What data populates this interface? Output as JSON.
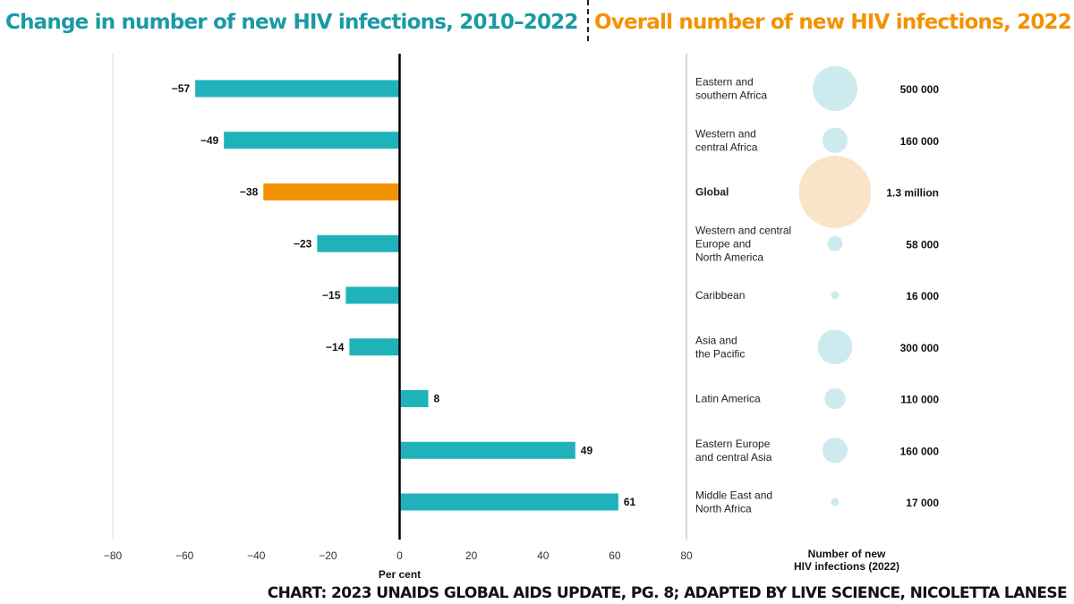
{
  "chart_data": [
    {
      "type": "bar",
      "orientation": "horizontal",
      "title": "Change in number of new HIV infections, 2010–2022",
      "xlabel": "Per cent",
      "xlim": [
        -80,
        80
      ],
      "xticks": [
        -80,
        -60,
        -40,
        -20,
        0,
        20,
        40,
        60,
        80
      ],
      "xtick_labels": [
        "−80",
        "−60",
        "−40",
        "−20",
        "0",
        "20",
        "40",
        "60",
        "80"
      ],
      "categories": [
        "Eastern and southern Africa",
        "Western and central Africa",
        "Global",
        "Western and central Europe and North America",
        "Caribbean",
        "Asia and the Pacific",
        "Latin America",
        "Eastern Europe and central Asia",
        "Middle East and North Africa"
      ],
      "values": [
        -57,
        -49,
        -38,
        -23,
        -15,
        -14,
        8,
        49,
        61
      ],
      "value_labels": [
        "−57",
        "−49",
        "−38",
        "−23",
        "−15",
        "−14",
        "8",
        "49",
        "61"
      ],
      "highlight": "Global",
      "colors": {
        "bar": "#20b2bb",
        "highlight": "#f39200"
      }
    },
    {
      "type": "bubble",
      "title": "Overall number of new HIV infections, 2022",
      "xlabel": "Number of new HIV infections (2022)",
      "xlabel_lines": [
        "Number of new",
        "HIV infections (2022)"
      ],
      "categories": [
        [
          "Eastern and",
          "southern Africa"
        ],
        [
          "Western and",
          "central Africa"
        ],
        [
          "Global"
        ],
        [
          "Western and central",
          "Europe and",
          "North America"
        ],
        [
          "Caribbean"
        ],
        [
          "Asia and",
          "the Pacific"
        ],
        [
          "Latin America"
        ],
        [
          "Eastern Europe",
          "and central Asia"
        ],
        [
          "Middle East and",
          "North Africa"
        ]
      ],
      "values": [
        500000,
        160000,
        1300000,
        58000,
        16000,
        300000,
        110000,
        160000,
        17000
      ],
      "value_labels": [
        "500 000",
        "160 000",
        "1.3 million",
        "58 000",
        "16 000",
        "300 000",
        "110 000",
        "160 000",
        "17 000"
      ],
      "highlight": "Global",
      "colors": {
        "bubble": "#cdebef",
        "highlight": "#fbe3c8"
      }
    }
  ],
  "header": {
    "left_title": "Change in number of new HIV infections, 2010–2022",
    "right_title": "Overall number of new HIV infections, 2022"
  },
  "footer": "CHART: 2023 UNAIDS GLOBAL AIDS UPDATE, PG. 8; ADAPTED BY LIVE SCIENCE, NICOLETTA LANESE"
}
